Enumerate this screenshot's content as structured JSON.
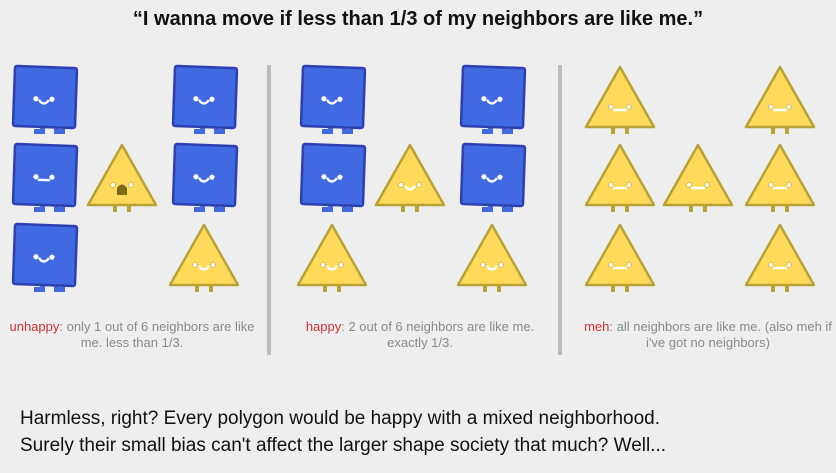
{
  "title": "“I wanna move if less than 1/3 of my neighbors are like me.”",
  "colors": {
    "square": "#4169e1",
    "square_stroke": "#2b3fb0",
    "triangle": "#ffd95a",
    "triangle_stroke": "#b8a234",
    "mood": "#cc3333",
    "caption": "#8a8a8a"
  },
  "panels": [
    {
      "mood": "unhappy",
      "caption": ": only 1 out of 6 neighbors are like me. less than 1/3.",
      "cells": [
        [
          "square-smile",
          null,
          "square-smile"
        ],
        [
          "square-meh",
          "triangle-sad",
          "square-smile"
        ],
        [
          "square-smile",
          null,
          "triangle-smile"
        ]
      ]
    },
    {
      "mood": "happy",
      "caption": ": 2 out of 6 neighbors are like me. exactly 1/3.",
      "cells": [
        [
          "square-smile",
          null,
          "square-smile"
        ],
        [
          "square-smile",
          "triangle-smile",
          "square-smile"
        ],
        [
          "triangle-smile",
          null,
          "triangle-smile"
        ]
      ]
    },
    {
      "mood": "meh",
      "caption": ": all neighbors are like me. (also meh if i've got no neighbors)",
      "cells": [
        [
          "triangle-meh",
          null,
          "triangle-meh"
        ],
        [
          "triangle-meh",
          "triangle-meh",
          "triangle-meh"
        ],
        [
          "triangle-meh",
          null,
          "triangle-meh"
        ]
      ]
    }
  ],
  "bottom": {
    "line1": "Harmless, right? Every polygon would be happy with a mixed neighborhood.",
    "line2": "Surely their small bias can't affect the larger shape society that much? Well..."
  }
}
